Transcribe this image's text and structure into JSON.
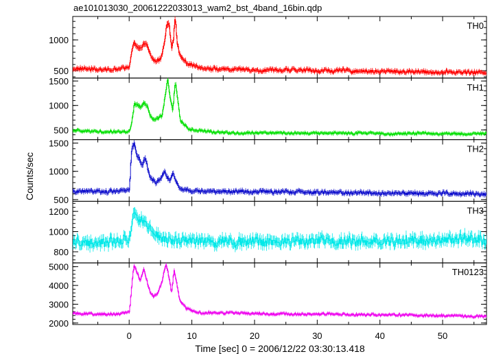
{
  "chart_data": {
    "type": "line",
    "title": "ae101013030_20061222033013_wam2_bst_4band_16bin.qdp",
    "ylabel": "Counts/sec",
    "xlabel": "Time [sec] 0 = 2006/12/22 03:30:13.418",
    "xlim": [
      -9,
      57
    ],
    "x_ticks": [
      0,
      10,
      20,
      30,
      40,
      50
    ],
    "x_tick_labels": [
      "0",
      "10",
      "20",
      "30",
      "40",
      "50"
    ],
    "grid": false,
    "error_bars": true,
    "panels": [
      {
        "name": "TH0",
        "color": "#ff0000",
        "ylim": [
          380,
          1380
        ],
        "y_ticks": [
          500,
          1000
        ],
        "y_tick_labels": [
          "500",
          "1000"
        ],
        "baseline": 500,
        "noise": 40,
        "decay": 25,
        "key_points": [
          [
            -9,
            530
          ],
          [
            -2,
            520
          ],
          [
            0,
            560
          ],
          [
            0.3,
            800
          ],
          [
            0.7,
            950
          ],
          [
            1.2,
            870
          ],
          [
            1.7,
            820
          ],
          [
            2.3,
            960
          ],
          [
            2.8,
            900
          ],
          [
            3.2,
            780
          ],
          [
            3.6,
            690
          ],
          [
            4.2,
            640
          ],
          [
            5.0,
            700
          ],
          [
            5.5,
            900
          ],
          [
            5.9,
            1250
          ],
          [
            6.3,
            1300
          ],
          [
            6.7,
            850
          ],
          [
            7.0,
            1000
          ],
          [
            7.3,
            1380
          ],
          [
            7.6,
            950
          ],
          [
            8.0,
            760
          ],
          [
            9.0,
            620
          ],
          [
            11,
            560
          ],
          [
            15,
            520
          ],
          [
            57,
            470
          ]
        ]
      },
      {
        "name": "TH1",
        "color": "#00e000",
        "ylim": [
          300,
          1560
        ],
        "y_ticks": [
          500,
          1000,
          1500
        ],
        "y_tick_labels": [
          "500",
          "1000",
          "1500"
        ],
        "baseline": 430,
        "noise": 35,
        "decay": 20,
        "key_points": [
          [
            -9,
            480
          ],
          [
            -3,
            460
          ],
          [
            0,
            470
          ],
          [
            0.4,
            700
          ],
          [
            0.8,
            1050
          ],
          [
            1.3,
            1000
          ],
          [
            1.8,
            950
          ],
          [
            2.3,
            1050
          ],
          [
            2.8,
            1000
          ],
          [
            3.3,
            780
          ],
          [
            3.8,
            700
          ],
          [
            4.5,
            730
          ],
          [
            5.2,
            800
          ],
          [
            5.7,
            1200
          ],
          [
            6.1,
            1550
          ],
          [
            6.5,
            1150
          ],
          [
            6.9,
            900
          ],
          [
            7.3,
            1500
          ],
          [
            7.7,
            1100
          ],
          [
            8.1,
            700
          ],
          [
            9.5,
            500
          ],
          [
            15,
            440
          ],
          [
            57,
            420
          ]
        ]
      },
      {
        "name": "TH2",
        "color": "#1010cc",
        "ylim": [
          470,
          1560
        ],
        "y_ticks": [
          500,
          1000,
          1500
        ],
        "y_tick_labels": [
          "500",
          "1000",
          "1500"
        ],
        "baseline": 620,
        "noise": 40,
        "decay": 20,
        "key_points": [
          [
            -9,
            640
          ],
          [
            -2,
            650
          ],
          [
            0,
            680
          ],
          [
            0.3,
            1350
          ],
          [
            0.7,
            1500
          ],
          [
            1.1,
            1300
          ],
          [
            1.6,
            1200
          ],
          [
            2.0,
            1100
          ],
          [
            2.5,
            1250
          ],
          [
            3.0,
            1000
          ],
          [
            3.5,
            860
          ],
          [
            4.2,
            800
          ],
          [
            5.0,
            880
          ],
          [
            5.6,
            1000
          ],
          [
            6.0,
            900
          ],
          [
            6.5,
            830
          ],
          [
            7.0,
            950
          ],
          [
            7.4,
            800
          ],
          [
            8.0,
            700
          ],
          [
            9.5,
            650
          ],
          [
            57,
            600
          ]
        ]
      },
      {
        "name": "TH3",
        "color": "#00e8e8",
        "ylim": [
          690,
          1300
        ],
        "y_ticks": [
          800,
          1000,
          1200
        ],
        "y_tick_labels": [
          "800",
          "1000",
          "1200"
        ],
        "baseline": 900,
        "noise": 70,
        "decay": 0,
        "key_points": [
          [
            -9,
            900
          ],
          [
            -2,
            900
          ],
          [
            0,
            950
          ],
          [
            0.5,
            1150
          ],
          [
            1.0,
            1200
          ],
          [
            1.8,
            1130
          ],
          [
            2.6,
            1080
          ],
          [
            3.4,
            1050
          ],
          [
            4.2,
            1000
          ],
          [
            5.5,
            950
          ],
          [
            7,
            920
          ],
          [
            10,
            900
          ],
          [
            57,
            920
          ]
        ]
      },
      {
        "name": "TH0123",
        "color": "#ee00ee",
        "ylim": [
          1920,
          5200
        ],
        "y_ticks": [
          2000,
          3000,
          4000,
          5000
        ],
        "y_tick_labels": [
          "2000",
          "3000",
          "4000",
          "5000"
        ],
        "baseline": 2400,
        "noise": 90,
        "decay": 40,
        "key_points": [
          [
            -9,
            2500
          ],
          [
            -2,
            2450
          ],
          [
            0,
            2600
          ],
          [
            0.3,
            3800
          ],
          [
            0.7,
            5100
          ],
          [
            1.2,
            4700
          ],
          [
            1.7,
            4300
          ],
          [
            2.3,
            4900
          ],
          [
            2.8,
            4200
          ],
          [
            3.3,
            3600
          ],
          [
            3.8,
            3400
          ],
          [
            4.5,
            3600
          ],
          [
            5.2,
            4200
          ],
          [
            5.8,
            5100
          ],
          [
            6.2,
            4600
          ],
          [
            6.7,
            3600
          ],
          [
            7.1,
            4800
          ],
          [
            7.5,
            4200
          ],
          [
            8.0,
            3200
          ],
          [
            9.0,
            2800
          ],
          [
            10.5,
            2550
          ],
          [
            57,
            2350
          ]
        ]
      }
    ]
  }
}
